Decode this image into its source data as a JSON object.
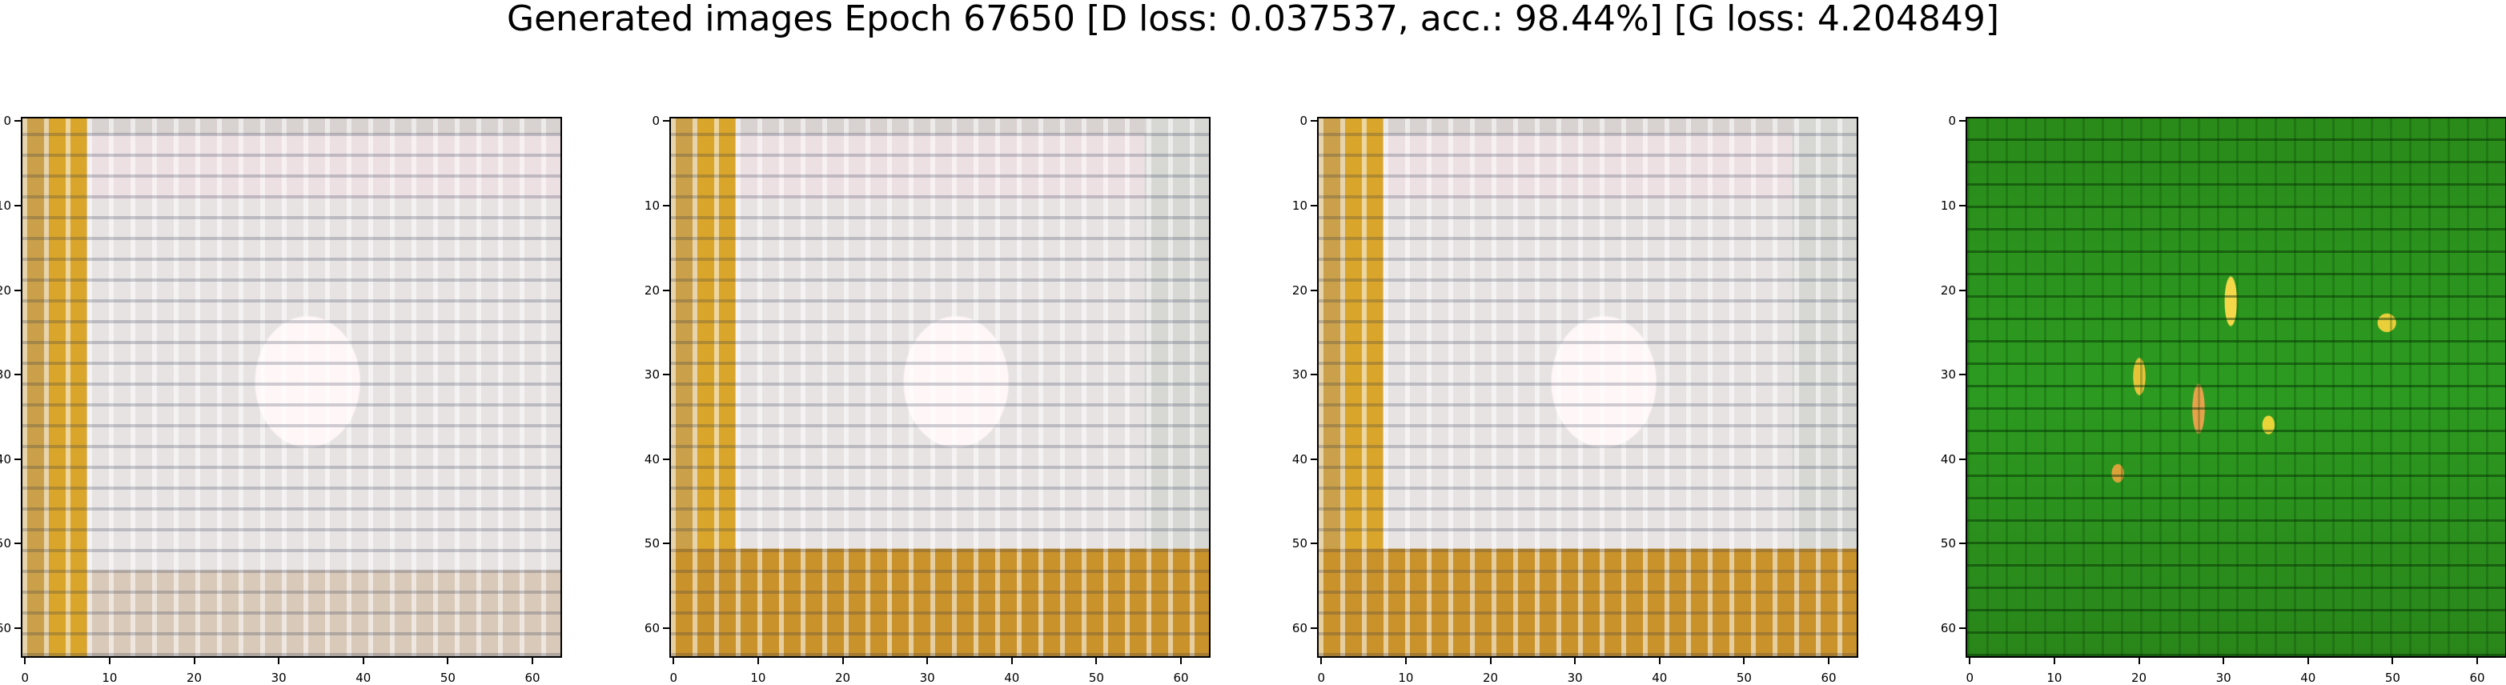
{
  "title": "Generated images Epoch 67650 [D loss: 0.037537, acc.: 98.44%] [G loss: 4.204849]",
  "axis_ticks": [
    "0",
    "10",
    "20",
    "30",
    "40",
    "50",
    "60"
  ],
  "panels": [
    {
      "image": "cream-grid-sample-1"
    },
    {
      "image": "cream-grid-sample-2"
    },
    {
      "image": "cream-grid-sample-3"
    },
    {
      "image": "green-grid-sample-4"
    }
  ]
}
